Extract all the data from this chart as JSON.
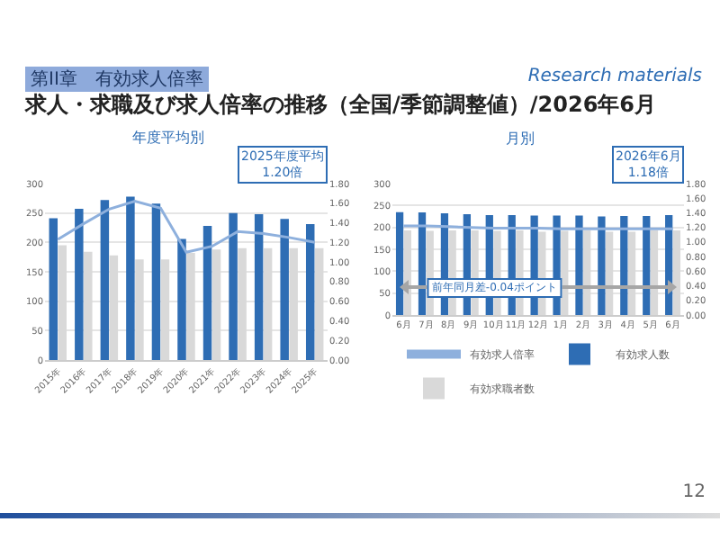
{
  "chart_data": [
    {
      "type": "bar",
      "title": "年度平均別",
      "annotations": [
        "第II章　有効求人倍率",
        "求人・求職及び求人倍率の推移（全国/季節調整値）/2026年6月",
        "Research materials",
        "2025年度平均\n1.20倍"
      ],
      "categories": [
        "2015年",
        "2016年",
        "2017年",
        "2018年",
        "2019年",
        "2020年",
        "2021年",
        "2022年",
        "2023年",
        "2024年",
        "2025年"
      ],
      "series": [
        {
          "color": "#2e6db4",
          "values": [
            241,
            257,
            272,
            278,
            266,
            206,
            228,
            250,
            248,
            240,
            231
          ]
        },
        {
          "color": "#d9d9d9",
          "values": [
            195,
            184,
            178,
            171,
            171,
            182,
            188,
            190,
            190,
            190,
            190
          ]
        },
        {
          "type": "line",
          "axis": "y2",
          "color": "#8eb0dd",
          "values": [
            1.23,
            1.39,
            1.54,
            1.62,
            1.55,
            1.1,
            1.16,
            1.31,
            1.29,
            1.25,
            1.2
          ]
        }
      ],
      "ylim": [
        0,
        300
      ],
      "yticks": [
        0,
        50,
        100,
        150,
        200,
        250,
        300
      ],
      "y2lim": [
        0,
        1.8
      ],
      "y2ticks": [
        {
          "value": 0,
          "label": "0.00"
        },
        {
          "value": 0.2,
          "label": "0.20"
        },
        {
          "value": 0.4,
          "label": "0.40"
        },
        {
          "value": 0.6,
          "label": "0.60"
        },
        {
          "value": 0.8,
          "label": "0.80"
        },
        {
          "value": 1,
          "label": "1.00"
        },
        {
          "value": 1.2,
          "label": "1.20"
        },
        {
          "value": 1.4,
          "label": "1.40"
        },
        {
          "value": 1.6,
          "label": "1.60"
        },
        {
          "value": 1.8,
          "label": "1.80"
        }
      ],
      "grid": "y",
      "legend": false
    },
    {
      "type": "bar",
      "title": "月別",
      "annotations": [
        "2026年6月\n1.18倍",
        "前年同月差-0.04ポイント",
        "12"
      ],
      "categories": [
        "6月",
        "7月",
        "8月",
        "9月",
        "10月",
        "11月",
        "12月",
        "1月",
        "2月",
        "3月",
        "4月",
        "5月",
        "6月"
      ],
      "series": [
        {
          "name": "有効求人倍率",
          "type": "line",
          "axis": "y2",
          "color": "#8eb0dd",
          "values": [
            1.22,
            1.22,
            1.21,
            1.2,
            1.19,
            1.19,
            1.19,
            1.18,
            1.18,
            1.18,
            1.18,
            1.18,
            1.18
          ]
        },
        {
          "name": "有効求人数",
          "color": "#2e6db4",
          "values": [
            235,
            234,
            232,
            230,
            228,
            228,
            227,
            227,
            227,
            225,
            226,
            226,
            228
          ]
        },
        {
          "name": "有効求職者数",
          "color": "#d9d9d9",
          "values": [
            193,
            192,
            193,
            193,
            192,
            193,
            190,
            192,
            193,
            190,
            190,
            193,
            193
          ]
        }
      ],
      "ylim": [
        0,
        300
      ],
      "yticks": [
        0,
        50,
        100,
        150,
        200,
        250,
        300
      ],
      "y2lim": [
        0,
        1.8
      ],
      "y2ticks": [
        {
          "value": 0,
          "label": "0.00"
        },
        {
          "value": 0.2,
          "label": "0.20"
        },
        {
          "value": 0.4,
          "label": "0.40"
        },
        {
          "value": 0.6,
          "label": "0.60"
        },
        {
          "value": 0.8,
          "label": "0.80"
        },
        {
          "value": 1,
          "label": "1.00"
        },
        {
          "value": 1.2,
          "label": "1.20"
        },
        {
          "value": 1.4,
          "label": "1.40"
        },
        {
          "value": 1.6,
          "label": "1.60"
        },
        {
          "value": 1.8,
          "label": "1.80"
        }
      ],
      "grid": "y",
      "legend": "bottom"
    }
  ]
}
